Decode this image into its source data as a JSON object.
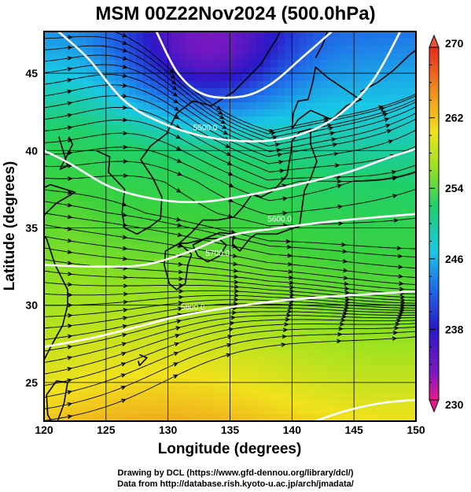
{
  "title": "MSM 00Z22Nov2024 (500.0hPa)",
  "axes": {
    "xlabel": "Longitude (degrees)",
    "ylabel": "Latitude  (degrees)",
    "x_ticks": [
      "120",
      "125",
      "130",
      "135",
      "140",
      "145",
      "150"
    ],
    "y_ticks": [
      "45",
      "40",
      "35",
      "30",
      "25"
    ],
    "x_range": [
      120,
      150
    ],
    "y_range": [
      22.5,
      47.7
    ]
  },
  "colorbar": {
    "labels": [
      "270",
      "262",
      "254",
      "246",
      "238",
      "230"
    ],
    "range": [
      230,
      270
    ],
    "colors": [
      "#e61a8c",
      "#2a18c8",
      "#1f5fe8",
      "#19c8e6",
      "#1fd06a",
      "#9ae21f",
      "#f0e21c",
      "#f08a1c",
      "#e62a1c"
    ]
  },
  "contours": {
    "labels": [
      "5500.0",
      "5600.0",
      "5700.0",
      "5800.0"
    ],
    "levels": [
      5400,
      5500,
      5600,
      5700,
      5800,
      5900
    ]
  },
  "credits": {
    "line1": "Drawing by DCL (https://www.gfd-dennou.org/library/dcl/)",
    "line2": "Data from http://database.rish.kyoto-u.ac.jp/arch/jmadata/"
  }
}
